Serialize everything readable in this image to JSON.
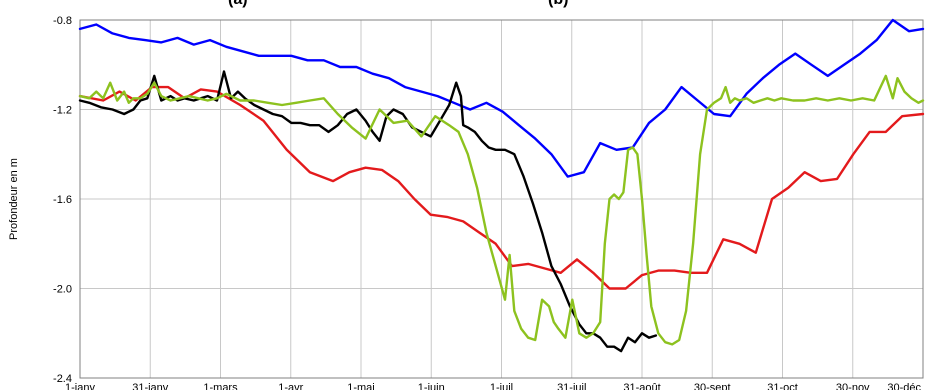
{
  "chart_data": {
    "type": "line",
    "title_fragments": [
      "(a)",
      "(b)"
    ],
    "ylabel": "Profondeur en m",
    "xlabel": "",
    "ylim": [
      -2.4,
      -0.8
    ],
    "y_ticks": [
      "-0.8",
      "-1.2",
      "-1.6",
      "-2.0",
      "-2.4"
    ],
    "x_ticks": [
      "1-janv",
      "31-janv",
      "1-mars",
      "1-avr",
      "1-mai",
      "1-juin",
      "1-juil",
      "31-juil",
      "31-août",
      "30-sept",
      "31-oct",
      "30-nov",
      "30-déc"
    ],
    "grid": true,
    "legend": "none",
    "series": [
      {
        "color": "#0000ff",
        "x": [
          1,
          8,
          15,
          22,
          29,
          36,
          43,
          50,
          57,
          64,
          71,
          78,
          85,
          92,
          99,
          106,
          113,
          120,
          127,
          134,
          141,
          148,
          155,
          162,
          169,
          176,
          183,
          190,
          197,
          204,
          211,
          218,
          225,
          232,
          239,
          246,
          253,
          260,
          267,
          274,
          281,
          288,
          295,
          302,
          309,
          316,
          323,
          330,
          337,
          344,
          351,
          358,
          364
        ],
        "y": [
          -0.84,
          -0.82,
          -0.86,
          -0.88,
          -0.89,
          -0.9,
          -0.88,
          -0.91,
          -0.89,
          -0.92,
          -0.94,
          -0.96,
          -0.96,
          -0.96,
          -0.98,
          -0.98,
          -1.01,
          -1.01,
          -1.04,
          -1.06,
          -1.1,
          -1.12,
          -1.14,
          -1.17,
          -1.2,
          -1.17,
          -1.21,
          -1.27,
          -1.33,
          -1.4,
          -1.5,
          -1.48,
          -1.35,
          -1.38,
          -1.37,
          -1.26,
          -1.2,
          -1.1,
          -1.16,
          -1.22,
          -1.23,
          -1.13,
          -1.06,
          -1.0,
          -0.95,
          -1.0,
          -1.05,
          -1.0,
          -0.95,
          -0.89,
          -0.8,
          -0.85,
          -0.84
        ]
      },
      {
        "color": "#e31a1c",
        "x": [
          1,
          11,
          18,
          25,
          32,
          39,
          46,
          53,
          60,
          70,
          80,
          90,
          100,
          110,
          117,
          124,
          131,
          138,
          145,
          152,
          159,
          166,
          173,
          180,
          187,
          194,
          201,
          208,
          215,
          222,
          229,
          236,
          243,
          250,
          257,
          264,
          271,
          278,
          285,
          292,
          299,
          306,
          313,
          320,
          327,
          334,
          341,
          348,
          355,
          364
        ],
        "y": [
          -1.14,
          -1.16,
          -1.12,
          -1.16,
          -1.1,
          -1.1,
          -1.15,
          -1.11,
          -1.12,
          -1.18,
          -1.25,
          -1.38,
          -1.48,
          -1.52,
          -1.48,
          -1.46,
          -1.47,
          -1.52,
          -1.6,
          -1.67,
          -1.68,
          -1.7,
          -1.75,
          -1.8,
          -1.9,
          -1.89,
          -1.91,
          -1.93,
          -1.87,
          -1.93,
          -2.0,
          -2.0,
          -1.94,
          -1.92,
          -1.92,
          -1.93,
          -1.93,
          -1.78,
          -1.8,
          -1.84,
          -1.6,
          -1.55,
          -1.48,
          -1.52,
          -1.51,
          -1.4,
          -1.3,
          -1.3,
          -1.23,
          -1.22
        ]
      },
      {
        "color": "#000000",
        "x": [
          1,
          5,
          10,
          15,
          20,
          24,
          27,
          30,
          33,
          36,
          40,
          43,
          46,
          50,
          53,
          56,
          60,
          63,
          66,
          69,
          72,
          76,
          80,
          84,
          88,
          92,
          96,
          100,
          104,
          108,
          112,
          116,
          120,
          124,
          127,
          130,
          133,
          136,
          140,
          144,
          148,
          152,
          156,
          160,
          163,
          165,
          166,
          168,
          171,
          174,
          177,
          180,
          184,
          188,
          192,
          196,
          200,
          204,
          208,
          212,
          216,
          219,
          222,
          225,
          228,
          231,
          234,
          237,
          240,
          243,
          246,
          249
        ],
        "y": [
          -1.16,
          -1.17,
          -1.19,
          -1.2,
          -1.22,
          -1.2,
          -1.16,
          -1.15,
          -1.05,
          -1.16,
          -1.14,
          -1.16,
          -1.15,
          -1.16,
          -1.15,
          -1.14,
          -1.16,
          -1.03,
          -1.15,
          -1.12,
          -1.15,
          -1.18,
          -1.2,
          -1.22,
          -1.23,
          -1.26,
          -1.26,
          -1.27,
          -1.27,
          -1.3,
          -1.27,
          -1.22,
          -1.2,
          -1.25,
          -1.3,
          -1.34,
          -1.23,
          -1.2,
          -1.22,
          -1.28,
          -1.3,
          -1.32,
          -1.25,
          -1.18,
          -1.08,
          -1.14,
          -1.27,
          -1.28,
          -1.3,
          -1.34,
          -1.37,
          -1.38,
          -1.38,
          -1.4,
          -1.5,
          -1.62,
          -1.75,
          -1.9,
          -1.98,
          -2.08,
          -2.16,
          -2.2,
          -2.2,
          -2.22,
          -2.26,
          -2.26,
          -2.28,
          -2.22,
          -2.24,
          -2.2,
          -2.22,
          -2.21
        ]
      },
      {
        "color": "#8dc21f",
        "x": [
          1,
          5,
          8,
          11,
          14,
          17,
          20,
          22,
          24,
          27,
          30,
          33,
          36,
          40,
          44,
          48,
          52,
          56,
          60,
          64,
          70,
          76,
          82,
          88,
          94,
          100,
          106,
          112,
          118,
          124,
          130,
          136,
          142,
          148,
          154,
          160,
          164,
          168,
          172,
          176,
          180,
          184,
          186,
          188,
          191,
          194,
          197,
          200,
          203,
          205,
          207,
          210,
          213,
          216,
          219,
          222,
          225,
          227,
          229,
          231,
          233,
          235,
          237,
          239,
          241,
          243,
          245,
          247,
          250,
          253,
          256,
          259,
          262,
          265,
          268,
          271,
          274,
          277,
          279,
          281,
          283,
          285,
          288,
          291,
          294,
          297,
          300,
          303,
          308,
          313,
          318,
          323,
          328,
          333,
          338,
          343,
          348,
          351,
          353,
          356,
          359,
          362,
          364
        ],
        "y": [
          -1.14,
          -1.15,
          -1.12,
          -1.15,
          -1.08,
          -1.16,
          -1.12,
          -1.17,
          -1.15,
          -1.15,
          -1.13,
          -1.08,
          -1.14,
          -1.16,
          -1.15,
          -1.14,
          -1.15,
          -1.16,
          -1.15,
          -1.13,
          -1.16,
          -1.16,
          -1.17,
          -1.18,
          -1.17,
          -1.16,
          -1.15,
          -1.22,
          -1.28,
          -1.33,
          -1.2,
          -1.26,
          -1.25,
          -1.32,
          -1.23,
          -1.27,
          -1.3,
          -1.4,
          -1.55,
          -1.75,
          -1.9,
          -2.05,
          -1.85,
          -2.1,
          -2.18,
          -2.22,
          -2.23,
          -2.05,
          -2.08,
          -2.15,
          -2.18,
          -2.22,
          -2.05,
          -2.2,
          -2.22,
          -2.2,
          -2.15,
          -1.8,
          -1.6,
          -1.58,
          -1.6,
          -1.57,
          -1.38,
          -1.37,
          -1.4,
          -1.6,
          -1.85,
          -2.08,
          -2.2,
          -2.24,
          -2.25,
          -2.23,
          -2.1,
          -1.8,
          -1.4,
          -1.2,
          -1.17,
          -1.15,
          -1.1,
          -1.17,
          -1.15,
          -1.16,
          -1.15,
          -1.17,
          -1.16,
          -1.15,
          -1.16,
          -1.15,
          -1.16,
          -1.16,
          -1.15,
          -1.16,
          -1.15,
          -1.16,
          -1.15,
          -1.16,
          -1.05,
          -1.15,
          -1.06,
          -1.12,
          -1.15,
          -1.17,
          -1.16
        ]
      }
    ]
  }
}
